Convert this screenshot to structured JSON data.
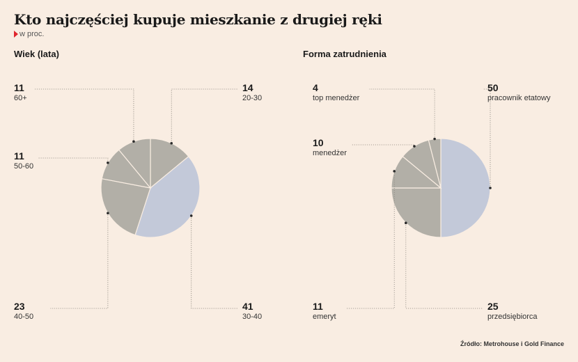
{
  "title": "Kto najczęściej kupuje mieszkanie z drugiej ręki",
  "subtitle": "w proc.",
  "source": "Źródło: Metrohouse i Gold Finance",
  "chart_data": [
    {
      "type": "pie",
      "title": "Wiek (lata)",
      "slices": [
        {
          "label": "20-30",
          "value": 14,
          "color": "#b2afa7"
        },
        {
          "label": "30-40",
          "value": 41,
          "color": "#c3c9d9"
        },
        {
          "label": "40-50",
          "value": 23,
          "color": "#b2afa7"
        },
        {
          "label": "50-60",
          "value": 11,
          "color": "#b2afa7"
        },
        {
          "label": "60+",
          "value": 11,
          "color": "#b2afa7"
        }
      ]
    },
    {
      "type": "pie",
      "title": "Forma zatrudnienia",
      "slices": [
        {
          "label": "pracownik etatowy",
          "value": 50,
          "color": "#c3c9d9"
        },
        {
          "label": "przedsiębiorca",
          "value": 25,
          "color": "#b2afa7"
        },
        {
          "label": "emeryt",
          "value": 11,
          "color": "#b2afa7"
        },
        {
          "label": "menedżer",
          "value": 10,
          "color": "#b2afa7"
        },
        {
          "label": "top menedżer",
          "value": 4,
          "color": "#b2afa7"
        }
      ]
    }
  ]
}
